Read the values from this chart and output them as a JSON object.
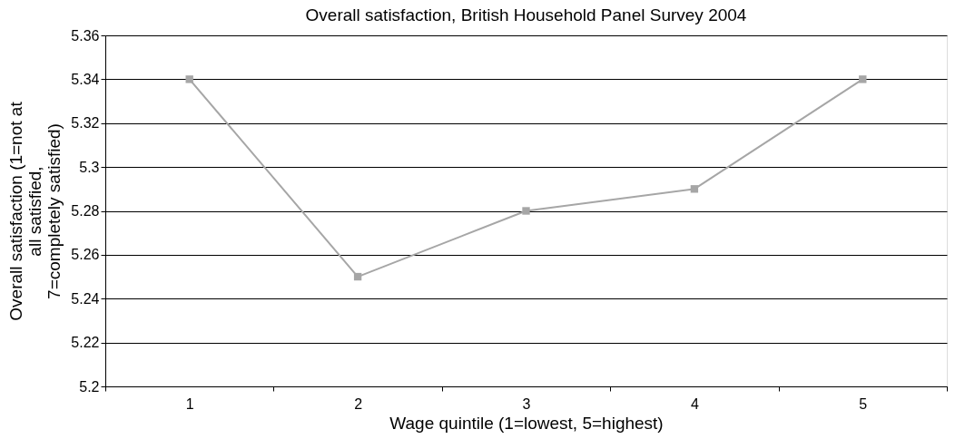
{
  "chart_data": {
    "type": "line",
    "title": "Overall satisfaction, British Household Panel Survey 2004",
    "xlabel": "Wage quintile (1=lowest, 5=highest)",
    "ylabel": "Overall satisfaction (1=not at\nall satisfied,\n7=completely satisfied)",
    "categories": [
      "1",
      "2",
      "3",
      "4",
      "5"
    ],
    "series": [
      {
        "color": "#a6a6a6",
        "values": [
          5.34,
          5.25,
          5.28,
          5.29,
          5.34
        ]
      }
    ],
    "ylim": [
      5.2,
      5.36
    ],
    "yticks": [
      5.2,
      5.22,
      5.24,
      5.26,
      5.28,
      5.3,
      5.32,
      5.34,
      5.36
    ],
    "grid": "y",
    "marker": "square",
    "line_style": "solid",
    "legend": false
  }
}
